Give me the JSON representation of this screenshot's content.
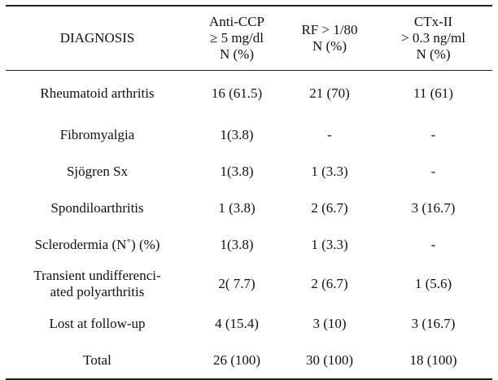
{
  "table": {
    "headers": [
      [
        "DIAGNOSIS"
      ],
      [
        "Anti-CCP",
        "≥ 5 mg/dl",
        "N (%)"
      ],
      [
        "RF > 1/80",
        "N (%)"
      ],
      [
        "CTx-II",
        "> 0.3 ng/ml",
        "N (%)"
      ]
    ],
    "rows": [
      {
        "diagnosis": [
          "Rheumatoid arthritis"
        ],
        "anti_ccp": "16 (61.5)",
        "rf": "21 (70)",
        "ctx": "11 (61)"
      },
      {
        "diagnosis": [
          "Fibromyalgia"
        ],
        "anti_ccp": "1(3.8)",
        "rf": "-",
        "ctx": "-"
      },
      {
        "diagnosis": [
          "Sjögren Sx"
        ],
        "anti_ccp": "1(3.8)",
        "rf": "1 (3.3)",
        "ctx": "-"
      },
      {
        "diagnosis": [
          "Spondiloarthritis"
        ],
        "anti_ccp": "1 (3.8)",
        "rf": "2 (6.7)",
        "ctx": "3 (16.7)"
      },
      {
        "diagnosis": [
          "Sclerodermia (N˚) (%)"
        ],
        "anti_ccp": "1(3.8)",
        "rf": "1 (3.3)",
        "ctx": "-"
      },
      {
        "diagnosis": [
          "Transient undifferenci-",
          "ated polyarthritis"
        ],
        "anti_ccp": "2( 7.7)",
        "rf": "2 (6.7)",
        "ctx": "1 (5.6)"
      },
      {
        "diagnosis": [
          "Lost at follow-up"
        ],
        "anti_ccp": "4 (15.4)",
        "rf": "3 (10)",
        "ctx": "3 (16.7)"
      },
      {
        "diagnosis": [
          "Total"
        ],
        "anti_ccp": "26 (100)",
        "rf": "30 (100)",
        "ctx": "18 (100)"
      }
    ]
  }
}
